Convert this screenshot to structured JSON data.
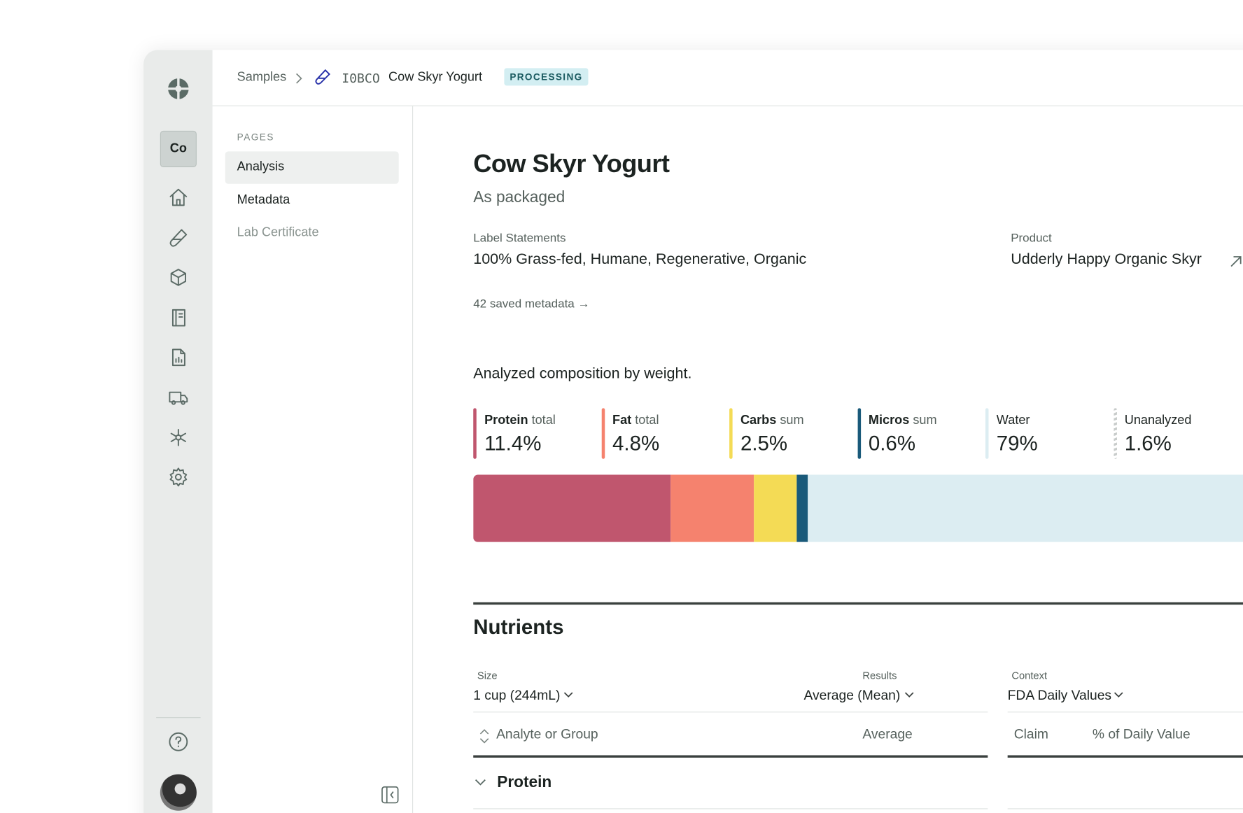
{
  "header": {
    "breadcrumb": "Samples",
    "sample_id": "I0BCO",
    "sample_name": "Cow Skyr Yogurt",
    "status": "PROCESSING"
  },
  "rail": {
    "workspace": "Co"
  },
  "pages": {
    "heading": "PAGES",
    "items": [
      "Analysis",
      "Metadata",
      "Lab Certificate"
    ]
  },
  "main": {
    "title": "Cow Skyr Yogurt",
    "subtitle": "As packaged",
    "label_statements": {
      "label": "Label Statements",
      "value": "100% Grass-fed, Humane, Regenerative, Organic"
    },
    "product": {
      "label": "Product",
      "value": "Udderly Happy Organic Skyr"
    },
    "metadata_link": "42 saved metadata →",
    "composition": {
      "heading": "Analyzed composition by weight.",
      "items": [
        {
          "name": "Protein",
          "qualifier": "total",
          "value": 11.4,
          "value_label": "11.4%",
          "color": "#c0566e"
        },
        {
          "name": "Fat",
          "qualifier": "total",
          "value": 4.8,
          "value_label": "4.8%",
          "color": "#f5826e"
        },
        {
          "name": "Carbs",
          "qualifier": "sum",
          "value": 2.5,
          "value_label": "2.5%",
          "color": "#f4db55"
        },
        {
          "name": "Micros",
          "qualifier": "sum",
          "value": 0.6,
          "value_label": "0.6%",
          "color": "#1a5a7a"
        },
        {
          "name": "Water",
          "value": 79,
          "value_label": "79%",
          "color": "#dcedf2"
        },
        {
          "name": "Unanalyzed",
          "value": 1.6,
          "value_label": "1.6%",
          "color": "#c8cccb"
        }
      ]
    },
    "nutrients": {
      "heading": "Nutrients",
      "size_label": "Size",
      "size_value": "1 cup (244mL)",
      "results_label": "Results",
      "results_value": "Average (Mean)",
      "context_label": "Context",
      "context_value": "FDA Daily Values",
      "columns": [
        "Analyte or Group",
        "Average",
        "Claim",
        "% of Daily Value"
      ],
      "rows": [
        "Protein"
      ]
    }
  }
}
